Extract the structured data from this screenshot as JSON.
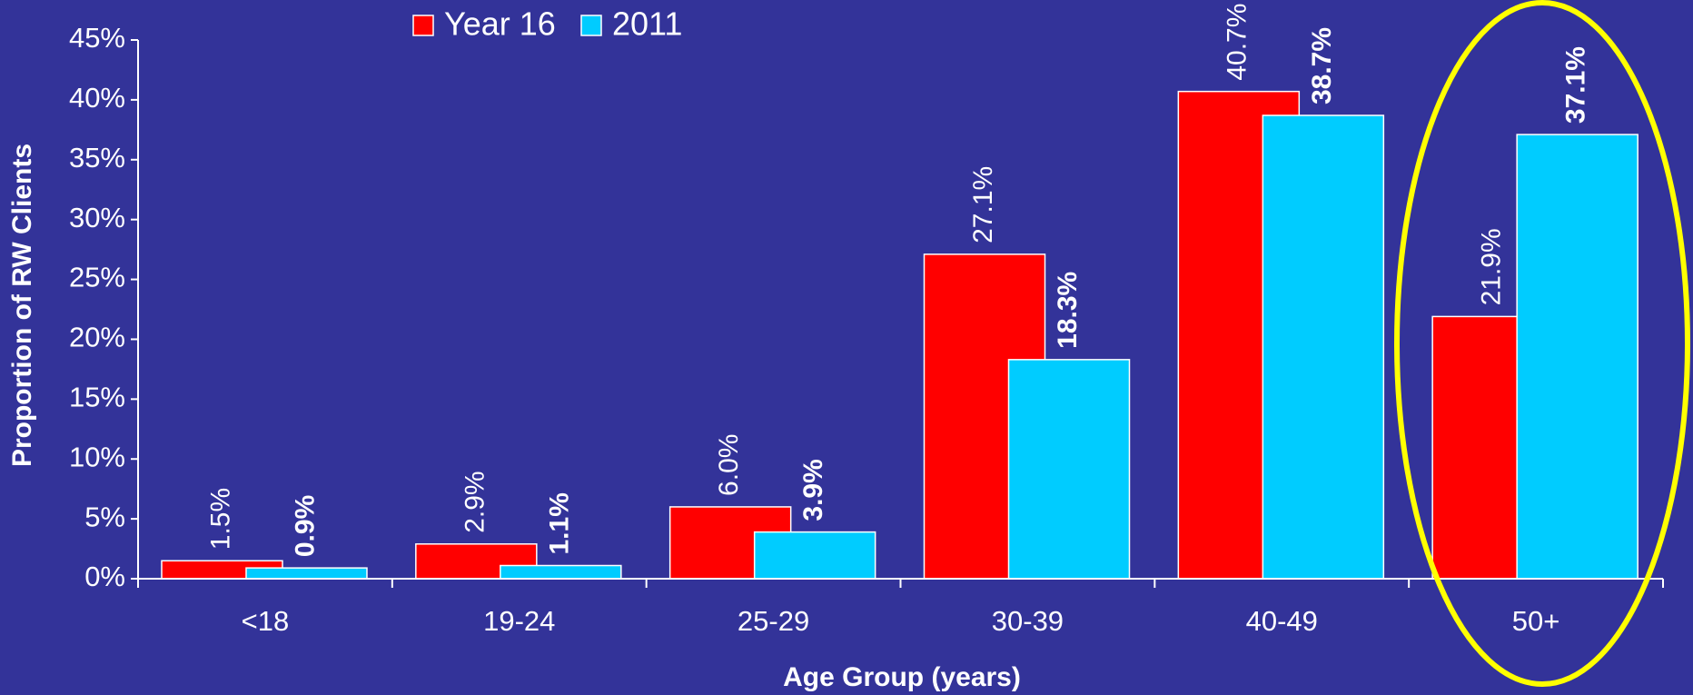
{
  "chart_data": {
    "type": "bar",
    "x_label": "Age Group (years)",
    "y_label": "Proportion of RW Clients",
    "categories": [
      "<18",
      "19-24",
      "25-29",
      "30-39",
      "40-49",
      "50+"
    ],
    "series": [
      {
        "name": "Year 16",
        "color": "#ff0000",
        "values": [
          1.5,
          2.9,
          6.0,
          27.1,
          40.7,
          21.9
        ],
        "value_labels": [
          "1.5%",
          "2.9%",
          "6.0%",
          "27.1%",
          "40.7%",
          "21.9%"
        ]
      },
      {
        "name": "2011",
        "color": "#00ccff",
        "values": [
          0.9,
          1.1,
          3.9,
          18.3,
          38.7,
          37.1
        ],
        "value_labels": [
          "0.9%",
          "1.1%",
          "3.9%",
          "18.3%",
          "38.7%",
          "37.1%"
        ]
      }
    ],
    "ylim": [
      0,
      45
    ],
    "yticks": [
      {
        "value": 0,
        "label": "0%"
      },
      {
        "value": 5,
        "label": "5%"
      },
      {
        "value": 10,
        "label": "10%"
      },
      {
        "value": 15,
        "label": "15%"
      },
      {
        "value": 20,
        "label": "20%"
      },
      {
        "value": 25,
        "label": "25%"
      },
      {
        "value": 30,
        "label": "30%"
      },
      {
        "value": 35,
        "label": "35%"
      },
      {
        "value": 40,
        "label": "40%"
      },
      {
        "value": 45,
        "label": "45%"
      }
    ],
    "legend": "top",
    "grid": false
  }
}
